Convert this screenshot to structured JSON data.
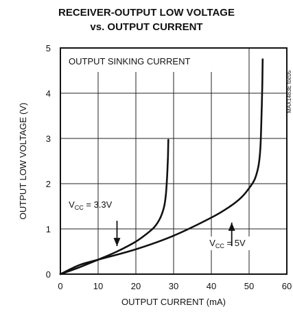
{
  "chart_data": {
    "type": "line",
    "title_line1": "RECEIVER-OUTPUT LOW VOLTAGE",
    "title_line2": "vs. OUTPUT CURRENT",
    "xlabel": "OUTPUT CURRENT (mA)",
    "ylabel": "OUTPUT LOW VOLTAGE (V)",
    "xlim": [
      0,
      60
    ],
    "ylim": [
      0,
      5
    ],
    "xticks": [
      0,
      10,
      20,
      30,
      40,
      50,
      60
    ],
    "yticks": [
      0,
      1,
      2,
      3,
      4,
      5
    ],
    "grid": true,
    "annotation_box": "OUTPUT SINKING CURRENT",
    "side_code": "MAX1483E toc05",
    "series": [
      {
        "name": "VCC = 3.3V",
        "label_main": "V",
        "label_sub": "CC",
        "label_rest": " = 3.3V",
        "points": [
          [
            0,
            0
          ],
          [
            5,
            0.15
          ],
          [
            10,
            0.32
          ],
          [
            15,
            0.5
          ],
          [
            20,
            0.72
          ],
          [
            23,
            0.9
          ],
          [
            25,
            1.05
          ],
          [
            26.5,
            1.25
          ],
          [
            27.5,
            1.5
          ],
          [
            28,
            1.8
          ],
          [
            28.3,
            2.2
          ],
          [
            28.5,
            2.6
          ],
          [
            28.6,
            2.97
          ]
        ]
      },
      {
        "name": "VCC = 5V",
        "label_main": "V",
        "label_sub": "CC",
        "label_rest": " = 5V",
        "points": [
          [
            0,
            0
          ],
          [
            5,
            0.2
          ],
          [
            10,
            0.32
          ],
          [
            20,
            0.55
          ],
          [
            30,
            0.85
          ],
          [
            40,
            1.25
          ],
          [
            45,
            1.5
          ],
          [
            48,
            1.7
          ],
          [
            50,
            1.9
          ],
          [
            51.5,
            2.1
          ],
          [
            52.5,
            2.4
          ],
          [
            53,
            2.8
          ],
          [
            53.3,
            3.5
          ],
          [
            53.5,
            4.2
          ],
          [
            53.6,
            4.75
          ]
        ]
      }
    ]
  }
}
